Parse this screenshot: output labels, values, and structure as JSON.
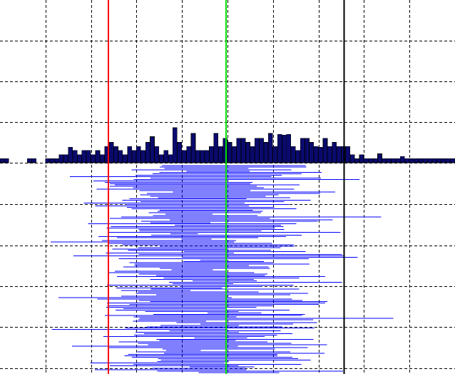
{
  "chart_data": {
    "type": "bar",
    "title": "",
    "xlabel": "",
    "ylabel": "",
    "grid": true,
    "xlim": [
      0,
      10
    ],
    "colors": {
      "bars": "#0a0a6e",
      "segments": "#0000ff",
      "red_line": "#ff0000",
      "green_line": "#00e000",
      "black_line": "#000000"
    },
    "histogram": {
      "bin_width": 0.1,
      "ylim": [
        0,
        4
      ],
      "counts": [
        0.1,
        0.1,
        0,
        0,
        0,
        0,
        0.1,
        0.1,
        0,
        0,
        0.1,
        0.1,
        0.1,
        0.2,
        0.2,
        0.1,
        0.3,
        0.2,
        0.3,
        0.3,
        0.2,
        0.3,
        0.2,
        0.4,
        0.5,
        0.4,
        0.3,
        0.2,
        0.4,
        0.3,
        0.4,
        0.3,
        0.5,
        0.6,
        0.4,
        0.2,
        0.3,
        0.2,
        0.5,
        0.5,
        0.3,
        0.4,
        0.5,
        0.3,
        0.3,
        0.3,
        0.4,
        0.5,
        0.4,
        0.6,
        0.5,
        0.4,
        0.6,
        0.6,
        0.5,
        0.4,
        0.6,
        0.6,
        0.5,
        0.5,
        0.4,
        0.7,
        0.5,
        0.7,
        0.4,
        0.3,
        0.6,
        0.6,
        0.5,
        0.4,
        0.3,
        0.6,
        0.4,
        0.5,
        0.4,
        0.4,
        0.4,
        0.2,
        0.1,
        0.2,
        0.1,
        0.1,
        0.1,
        0.1,
        0.1,
        0.1,
        0.1,
        0.1,
        0.1,
        0.1,
        0.1,
        0.1,
        0.1,
        0.1,
        0.1,
        0.1,
        0.1,
        0.1,
        0.1,
        0.1
      ],
      "peaks": [
        [
          3.85,
          0.86
        ],
        [
          4.3,
          0.72
        ],
        [
          5.95,
          0.72
        ],
        [
          6.25,
          0.68
        ],
        [
          3.35,
          0.64
        ],
        [
          4.75,
          0.72
        ],
        [
          8.35,
          0.22
        ],
        [
          8.85,
          0.15
        ],
        [
          1.55,
          0.38
        ],
        [
          2.35,
          0.4
        ],
        [
          7.1,
          0.38
        ]
      ]
    },
    "vertical_lines": [
      {
        "x": 2.38,
        "color": "red"
      },
      {
        "x": 4.97,
        "color": "green"
      },
      {
        "x": 7.56,
        "color": "black"
      }
    ],
    "intervals": {
      "y_start": 0,
      "y_end": 5,
      "count": 150,
      "center_mean": 4.6,
      "center_spread": 0.9,
      "halfwidth_mean": 1.6,
      "halfwidth_spread": 0.8,
      "seed": 7
    }
  }
}
